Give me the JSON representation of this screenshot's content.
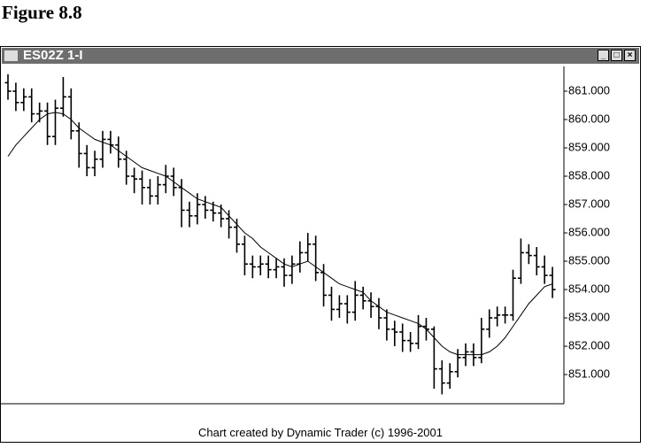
{
  "figure_label": "Figure 8.8",
  "window_title": "ES02Z 1-I",
  "footer": "Chart created by Dynamic Trader (c) 1996-2001",
  "chart_data": {
    "type": "ohlc",
    "color": "#000000",
    "ylim": [
      849.97,
      861.875
    ],
    "yticks": [
      {
        "value": 861,
        "label": "861.000"
      },
      {
        "value": 860,
        "label": "860.000"
      },
      {
        "value": 859,
        "label": "859.000"
      },
      {
        "value": 858,
        "label": "858.000"
      },
      {
        "value": 857,
        "label": "857.000"
      },
      {
        "value": 856,
        "label": "856.000"
      },
      {
        "value": 855,
        "label": "855.000"
      },
      {
        "value": 854,
        "label": "854.000"
      },
      {
        "value": 853,
        "label": "853.000"
      },
      {
        "value": 852,
        "label": "852.000"
      },
      {
        "value": 851,
        "label": "851.000"
      }
    ],
    "open": [
      861.3,
      861.0,
      860.6,
      860.8,
      860.2,
      860.3,
      859.4,
      860.4,
      860.8,
      859.6,
      858.8,
      858.3,
      858.6,
      859.3,
      859.1,
      858.6,
      858.0,
      857.9,
      857.6,
      857.3,
      857.7,
      858.0,
      857.6,
      856.8,
      856.6,
      857.0,
      856.8,
      856.7,
      856.5,
      856.2,
      855.6,
      854.9,
      854.8,
      854.9,
      854.7,
      854.8,
      854.5,
      854.9,
      855.3,
      855.6,
      854.6,
      853.8,
      853.3,
      853.5,
      853.2,
      853.8,
      853.6,
      853.4,
      853.0,
      852.6,
      852.5,
      852.2,
      852.1,
      852.7,
      852.6,
      851.2,
      850.7,
      851.1,
      851.6,
      851.8,
      851.6,
      852.6,
      853.0,
      853.1,
      853.1,
      854.4,
      855.3,
      855.2,
      854.8,
      854.5
    ],
    "high": [
      861.6,
      861.3,
      861.1,
      861.1,
      860.6,
      860.6,
      860.7,
      861.5,
      861.1,
      859.9,
      859.1,
      858.9,
      859.6,
      859.6,
      859.4,
      858.9,
      858.3,
      858.2,
      857.9,
      858.0,
      858.4,
      858.3,
      857.9,
      857.1,
      857.4,
      857.3,
      857.1,
      857.0,
      856.8,
      856.5,
      855.9,
      855.2,
      855.2,
      855.2,
      855.1,
      855.1,
      855.2,
      855.7,
      856.0,
      855.9,
      854.9,
      854.1,
      853.8,
      853.8,
      854.3,
      854.1,
      853.9,
      853.7,
      853.3,
      852.9,
      852.8,
      852.5,
      853.1,
      853.0,
      852.7,
      851.5,
      851.4,
      851.9,
      852.1,
      852.1,
      853.0,
      853.3,
      853.4,
      853.4,
      854.7,
      855.8,
      855.6,
      855.5,
      855.2,
      854.8
    ],
    "low": [
      860.7,
      860.3,
      860.3,
      859.9,
      859.9,
      859.1,
      859.1,
      860.1,
      859.3,
      858.3,
      858.0,
      858.0,
      858.3,
      858.8,
      858.3,
      857.7,
      857.4,
      857.0,
      857.0,
      857.0,
      857.4,
      857.3,
      856.2,
      856.2,
      856.3,
      856.5,
      856.4,
      856.2,
      855.8,
      855.3,
      854.5,
      854.4,
      854.5,
      854.4,
      854.4,
      854.1,
      854.2,
      854.6,
      855.0,
      854.3,
      853.4,
      852.9,
      853.0,
      852.8,
      852.9,
      853.3,
      853.0,
      852.6,
      852.2,
      852.0,
      851.8,
      851.8,
      851.9,
      852.2,
      850.5,
      850.3,
      850.5,
      850.9,
      851.3,
      851.3,
      851.4,
      852.3,
      852.7,
      852.8,
      852.9,
      854.2,
      854.9,
      854.5,
      854.2,
      853.7
    ],
    "close": [
      861.0,
      860.6,
      860.8,
      860.2,
      860.3,
      859.4,
      860.4,
      860.8,
      859.6,
      858.8,
      858.3,
      858.6,
      859.3,
      859.1,
      858.6,
      858.0,
      857.9,
      857.6,
      857.3,
      857.7,
      858.0,
      857.6,
      856.8,
      856.6,
      857.0,
      856.8,
      856.7,
      856.5,
      856.2,
      855.6,
      854.9,
      854.8,
      854.9,
      854.7,
      854.8,
      854.5,
      854.9,
      855.3,
      855.6,
      854.6,
      853.8,
      853.3,
      853.5,
      853.2,
      853.8,
      853.6,
      853.4,
      853.0,
      852.6,
      852.5,
      852.2,
      852.1,
      852.7,
      852.6,
      851.2,
      850.7,
      851.1,
      851.6,
      851.8,
      851.6,
      852.6,
      853.0,
      853.1,
      853.1,
      854.4,
      855.3,
      855.2,
      854.8,
      854.5,
      854.0
    ],
    "overlay": {
      "type": "line",
      "color": "#000000",
      "values": [
        858.7,
        859.1,
        859.4,
        859.7,
        860.0,
        860.2,
        860.25,
        860.2,
        860.0,
        859.7,
        859.5,
        859.3,
        859.2,
        859.1,
        858.9,
        858.7,
        858.5,
        858.3,
        858.2,
        858.1,
        858.0,
        857.8,
        857.6,
        857.4,
        857.2,
        857.1,
        857.0,
        856.9,
        856.6,
        856.3,
        856.0,
        855.8,
        855.5,
        855.3,
        855.1,
        854.9,
        854.8,
        854.9,
        855.0,
        854.8,
        854.6,
        854.4,
        854.2,
        854.1,
        854.0,
        853.9,
        853.6,
        853.4,
        853.2,
        853.1,
        853.0,
        852.9,
        852.8,
        852.6,
        852.3,
        852.0,
        851.8,
        851.7,
        851.7,
        851.7,
        851.7,
        851.8,
        852.0,
        852.3,
        852.7,
        853.1,
        853.5,
        853.8,
        854.1,
        854.2
      ]
    }
  }
}
